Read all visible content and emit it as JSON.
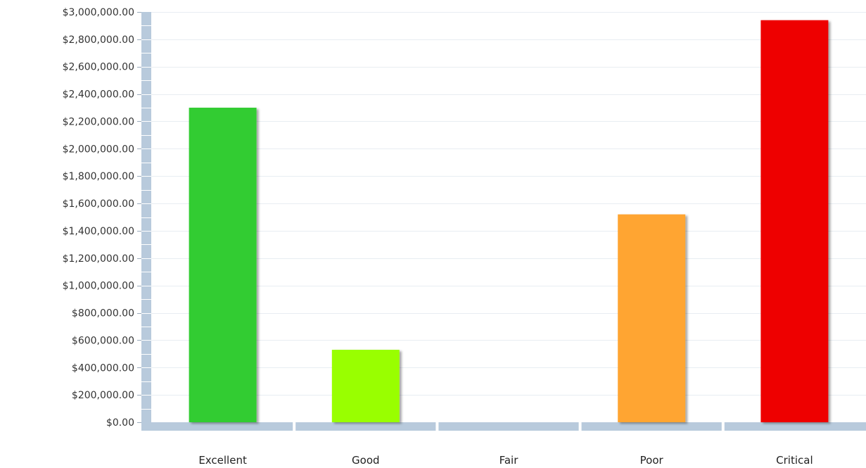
{
  "chart_data": {
    "type": "bar",
    "title": "",
    "xlabel": "",
    "ylabel": "",
    "categories": [
      "Excellent",
      "Good",
      "Fair",
      "Poor",
      "Critical"
    ],
    "values": [
      2300000,
      530000,
      0,
      1520000,
      2940000
    ],
    "colors": [
      "#33cc33",
      "#99ff00",
      "#cccccc",
      "#ffa533",
      "#ee0000"
    ],
    "ylim": [
      0,
      3000000
    ],
    "y_ticks": [
      {
        "value": 0,
        "label": "$0.00"
      },
      {
        "value": 200000,
        "label": "$200,000.00"
      },
      {
        "value": 400000,
        "label": "$400,000.00"
      },
      {
        "value": 600000,
        "label": "$600,000.00"
      },
      {
        "value": 800000,
        "label": "$800,000.00"
      },
      {
        "value": 1000000,
        "label": "$1,000,000.00"
      },
      {
        "value": 1200000,
        "label": "$1,200,000.00"
      },
      {
        "value": 1400000,
        "label": "$1,400,000.00"
      },
      {
        "value": 1600000,
        "label": "$1,600,000.00"
      },
      {
        "value": 1800000,
        "label": "$1,800,000.00"
      },
      {
        "value": 2000000,
        "label": "$2,000,000.00"
      },
      {
        "value": 2200000,
        "label": "$2,200,000.00"
      },
      {
        "value": 2400000,
        "label": "$2,400,000.00"
      },
      {
        "value": 2600000,
        "label": "$2,600,000.00"
      },
      {
        "value": 2800000,
        "label": "$2,800,000.00"
      },
      {
        "value": 3000000,
        "label": "$3,000,000.00"
      }
    ],
    "grid": true,
    "legend": "none",
    "axis_color": "#b8cadc"
  }
}
